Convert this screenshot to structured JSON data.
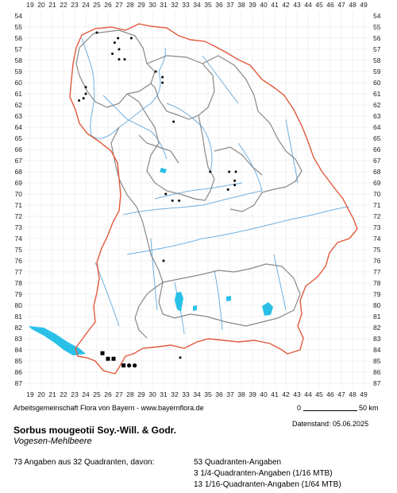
{
  "grid": {
    "columns": [
      "19",
      "20",
      "21",
      "22",
      "23",
      "24",
      "25",
      "26",
      "27",
      "28",
      "29",
      "30",
      "31",
      "32",
      "33",
      "34",
      "35",
      "36",
      "37",
      "38",
      "39",
      "40",
      "41",
      "42",
      "43",
      "44",
      "45",
      "46",
      "47",
      "48",
      "49"
    ],
    "rows": [
      "54",
      "55",
      "56",
      "57",
      "58",
      "59",
      "60",
      "61",
      "62",
      "63",
      "64",
      "65",
      "66",
      "67",
      "68",
      "69",
      "70",
      "71",
      "72",
      "73",
      "74",
      "75",
      "76",
      "77",
      "78",
      "79",
      "80",
      "81",
      "82",
      "83",
      "84",
      "85",
      "86",
      "87"
    ]
  },
  "colors": {
    "state_border": "#e25a3c",
    "district_border": "#888888",
    "rivers": "#6fb0e0",
    "lakes": "#29c0e8",
    "grid_lines": "#e6e6e6"
  },
  "footer": {
    "credit": "Arbeitsgemeinschaft Flora von Bayern - www.bayernflora.de",
    "scale_start": "0",
    "scale_end": "50 km",
    "date_label": "Datenstand: 05.06.2025",
    "species_name": "Sorbus mougeotii Soy.-Will. & Godr.",
    "common_name": "Vogesen-Mehlbeere",
    "summary": "73 Angaben aus 32 Quadranten, davon:",
    "breakdown": [
      "53 Quadranten-Angaben",
      "3 1/4-Quadranten-Angaben (1/16 MTB)",
      "13 1/16-Quadranten-Angaben (1/64 MTB)"
    ]
  },
  "records": [
    {
      "col": 25.0,
      "row": 55.5,
      "kind": "dot"
    },
    {
      "col": 26.9,
      "row": 56.0,
      "kind": "dot"
    },
    {
      "col": 28.1,
      "row": 56.0,
      "kind": "dot"
    },
    {
      "col": 26.6,
      "row": 56.4,
      "kind": "dot"
    },
    {
      "col": 27.0,
      "row": 57.0,
      "kind": "dot"
    },
    {
      "col": 26.4,
      "row": 57.4,
      "kind": "dot"
    },
    {
      "col": 27.0,
      "row": 57.9,
      "kind": "dot"
    },
    {
      "col": 27.5,
      "row": 57.9,
      "kind": "dot"
    },
    {
      "col": 30.3,
      "row": 59.0,
      "kind": "dot"
    },
    {
      "col": 30.9,
      "row": 59.5,
      "kind": "dot"
    },
    {
      "col": 30.9,
      "row": 60.0,
      "kind": "dot"
    },
    {
      "col": 24.0,
      "row": 60.4,
      "kind": "dot"
    },
    {
      "col": 24.0,
      "row": 61.0,
      "kind": "dot"
    },
    {
      "col": 23.8,
      "row": 61.4,
      "kind": "dot"
    },
    {
      "col": 23.4,
      "row": 61.6,
      "kind": "dot"
    },
    {
      "col": 31.9,
      "row": 63.5,
      "kind": "dot"
    },
    {
      "col": 35.2,
      "row": 68.0,
      "kind": "dot"
    },
    {
      "col": 36.9,
      "row": 68.0,
      "kind": "dot"
    },
    {
      "col": 37.5,
      "row": 68.0,
      "kind": "dot"
    },
    {
      "col": 37.4,
      "row": 68.8,
      "kind": "dot"
    },
    {
      "col": 37.4,
      "row": 69.2,
      "kind": "dot"
    },
    {
      "col": 36.8,
      "row": 69.6,
      "kind": "dot"
    },
    {
      "col": 31.2,
      "row": 70.0,
      "kind": "dot"
    },
    {
      "col": 31.8,
      "row": 70.6,
      "kind": "dot"
    },
    {
      "col": 32.4,
      "row": 70.6,
      "kind": "dot"
    },
    {
      "col": 31.0,
      "row": 76.0,
      "kind": "dot"
    },
    {
      "col": 25.5,
      "row": 84.3,
      "kind": "square"
    },
    {
      "col": 26.0,
      "row": 84.8,
      "kind": "square"
    },
    {
      "col": 26.5,
      "row": 84.8,
      "kind": "square"
    },
    {
      "col": 32.5,
      "row": 84.7,
      "kind": "dot"
    },
    {
      "col": 27.4,
      "row": 85.4,
      "kind": "square"
    },
    {
      "col": 27.9,
      "row": 85.4,
      "kind": "dot-large"
    },
    {
      "col": 28.4,
      "row": 85.4,
      "kind": "dot-large"
    }
  ]
}
